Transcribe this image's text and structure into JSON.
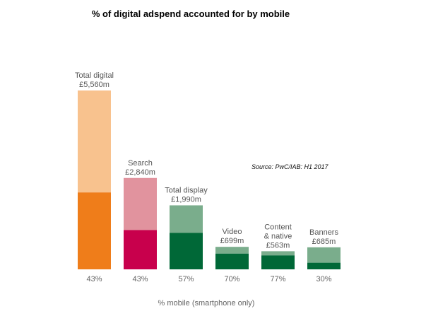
{
  "chart_data": {
    "type": "bar",
    "title": "% of digital adspend accounted for by mobile",
    "source": "Source: PwC/IAB: H1 2017",
    "xlabel": "% mobile (smartphone only)",
    "categories": [
      {
        "lines": [
          "Total digital",
          "£5,560m"
        ],
        "total": 5560,
        "mobile_pct": "43%",
        "mobile_fraction": 0.43,
        "color_total": "#f8c28e",
        "color_mobile": "#ef7d1a"
      },
      {
        "lines": [
          "Search",
          "£2,840m"
        ],
        "total": 2840,
        "mobile_pct": "43%",
        "mobile_fraction": 0.43,
        "color_total": "#e1939e",
        "color_mobile": "#c8004c"
      },
      {
        "lines": [
          "Total display",
          "£1,990m"
        ],
        "total": 1990,
        "mobile_pct": "57%",
        "mobile_fraction": 0.57,
        "color_total": "#7aad8c",
        "color_mobile": "#006837"
      },
      {
        "lines": [
          "Video",
          "£699m"
        ],
        "total": 699,
        "mobile_pct": "70%",
        "mobile_fraction": 0.7,
        "color_total": "#7aad8c",
        "color_mobile": "#006837"
      },
      {
        "lines": [
          "Content",
          "& native",
          "£563m"
        ],
        "total": 563,
        "mobile_pct": "77%",
        "mobile_fraction": 0.77,
        "color_total": "#7aad8c",
        "color_mobile": "#006837"
      },
      {
        "lines": [
          "Banners",
          "£685m"
        ],
        "total": 685,
        "mobile_pct": "30%",
        "mobile_fraction": 0.3,
        "color_total": "#7aad8c",
        "color_mobile": "#006837"
      }
    ]
  }
}
